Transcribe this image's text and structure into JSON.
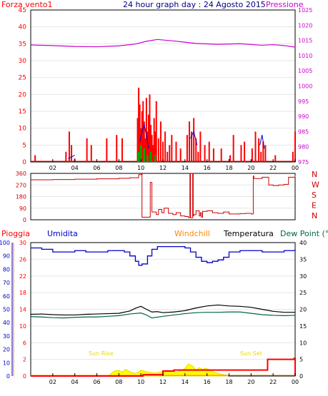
{
  "header": {
    "left_label": "Forza vento1",
    "title": "24 hour graph day : 24 Agosto 2015",
    "right_label": "Pressione"
  },
  "bottom_header": {
    "rain": "Pioggia",
    "humidity": "Umidita",
    "windchill": "Windchill",
    "temperature": "Temperatura",
    "dewpoint": "Dew Point (°C"
  },
  "annotations": {
    "sunrise": "Sun Rise",
    "sunset": "Sun Set"
  },
  "colors": {
    "wind": "#ff0000",
    "gust_blue": "#0000cc",
    "green": "#00aa00",
    "pressure": "#cc00cc",
    "direction": "#cc0000",
    "humidity": "#0000cc",
    "windchill": "#ff8800",
    "temperature": "#000000",
    "dewpoint": "#006644",
    "rain_fill": "#ffff00",
    "rain_total": "#ff0000",
    "title": "#000080"
  },
  "chart_data": [
    {
      "type": "line",
      "name": "wind-pressure",
      "x_ticks": [
        "02",
        "04",
        "06",
        "08",
        "10",
        "12",
        "14",
        "16",
        "18",
        "20",
        "22",
        "00"
      ],
      "y_left_ticks": [
        "0",
        "5",
        "10",
        "15",
        "20",
        "25",
        "30",
        "35",
        "40",
        "45"
      ],
      "y_right_ticks": [
        "975",
        "980",
        "985",
        "990",
        "995",
        "1000",
        "1005",
        "1010",
        "1015",
        "1020",
        "1025"
      ],
      "ylim_left": [
        0,
        45
      ],
      "ylim_right": [
        975,
        1025
      ],
      "series": [
        {
          "name": "Pressione",
          "axis": "right",
          "x": [
            0,
            2,
            4,
            6,
            8,
            9.5,
            10.5,
            11.5,
            13,
            15,
            17,
            19,
            21,
            22,
            23,
            24
          ],
          "y": [
            1013.5,
            1013.3,
            1013,
            1012.9,
            1013.2,
            1013.8,
            1014.7,
            1015.3,
            1014.8,
            1014,
            1013.7,
            1013.9,
            1013.4,
            1013.6,
            1013.3,
            1012.8
          ]
        }
      ],
      "wind_speed": {
        "x": [
          0.4,
          3.2,
          3.5,
          3.7,
          4.0,
          5.1,
          5.5,
          6.9,
          7.8,
          8.3,
          9.7,
          9.8,
          9.9,
          10.0,
          10.1,
          10.2,
          10.3,
          10.4,
          10.5,
          10.6,
          10.7,
          10.8,
          10.9,
          11.0,
          11.1,
          11.2,
          11.3,
          11.4,
          11.6,
          11.8,
          12.0,
          12.2,
          12.4,
          12.6,
          12.8,
          13.2,
          13.6,
          14.2,
          14.4,
          14.6,
          14.8,
          15.0,
          15.2,
          15.4,
          15.8,
          16.2,
          16.6,
          17.3,
          18.1,
          18.4,
          19.1,
          19.4,
          20.1,
          20.4,
          20.7,
          20.9,
          21.1,
          21.3,
          22.2,
          23.8,
          24.0
        ],
        "y": [
          2,
          3,
          9,
          5,
          1,
          7,
          5,
          7,
          8,
          7,
          13,
          22,
          17,
          10,
          15,
          18,
          12,
          7,
          19,
          9,
          14,
          20,
          11,
          8,
          5,
          13,
          9,
          18,
          7,
          12,
          6,
          9,
          3,
          5,
          8,
          6,
          4,
          8,
          12,
          9,
          13,
          7,
          3,
          9,
          5,
          6,
          4,
          4,
          2,
          8,
          5,
          6,
          4,
          9,
          7,
          3,
          6,
          5,
          2,
          3,
          9
        ]
      },
      "wind_gust_blue": {
        "x": [
          3.4,
          4.0,
          9.9,
          10.1,
          10.3,
          10.5,
          10.7,
          14.5,
          14.8,
          15.1,
          20.8,
          21.0,
          21.2
        ],
        "y": [
          1,
          2,
          6,
          9,
          11,
          8,
          4,
          7,
          9,
          5,
          5,
          8,
          4
        ]
      },
      "wind_green": {
        "x": [
          9.8,
          10.0,
          10.3,
          10.6,
          10.9,
          11.3
        ],
        "y": [
          3,
          5,
          4,
          2,
          3,
          2
        ]
      }
    },
    {
      "type": "line",
      "name": "wind-direction",
      "y_left_ticks": [
        "0",
        "90",
        "180",
        "270",
        "360"
      ],
      "y_right_ticks": [
        "N",
        "W",
        "S",
        "E",
        "N"
      ],
      "ylim": [
        0,
        360
      ],
      "series": [
        {
          "name": "direction",
          "x": [
            0,
            2,
            4,
            6,
            8,
            9,
            9.8,
            10.05,
            10.1,
            10.5,
            10.8,
            10.85,
            11.0,
            11.4,
            11.6,
            11.9,
            12.1,
            12.5,
            12.9,
            13.2,
            13.6,
            14.0,
            14.3,
            14.45,
            14.5,
            14.7,
            14.75,
            14.8,
            15.0,
            15.3,
            15.4,
            15.5,
            15.6,
            16.0,
            16.5,
            17.0,
            17.5,
            18.0,
            18.5,
            19.0,
            19.5,
            20.0,
            20.2,
            20.25,
            21.0,
            21.5,
            21.6,
            22.0,
            22.5,
            23.0,
            23.4,
            23.5,
            24.0
          ],
          "y": [
            310,
            312,
            315,
            318,
            322,
            326,
            350,
            356,
            20,
            20,
            22,
            290,
            60,
            40,
            80,
            55,
            90,
            50,
            40,
            55,
            30,
            25,
            18,
            360,
            15,
            360,
            30,
            40,
            70,
            30,
            55,
            20,
            65,
            70,
            55,
            50,
            60,
            45,
            45,
            48,
            50,
            45,
            340,
            320,
            330,
            330,
            270,
            265,
            270,
            275,
            330,
            330,
            345
          ]
        }
      ]
    },
    {
      "type": "line",
      "name": "temperature-humidity-rain",
      "y_far_left_ticks": [
        "0",
        "10",
        "20",
        "30",
        "40",
        "50",
        "60",
        "70",
        "80",
        "90",
        "100"
      ],
      "y_left_ticks": [
        "0",
        "2",
        "6",
        "10",
        "14",
        "18",
        "22",
        "26",
        "30"
      ],
      "y_right_ticks": [
        "0",
        "5",
        "10",
        "15",
        "20",
        "25",
        "30",
        "35",
        "40"
      ],
      "ylim_humidity": [
        0,
        100
      ],
      "ylim_temperature": [
        0,
        40
      ],
      "series": [
        {
          "name": "Umidita",
          "axis": "humidity",
          "x": [
            0,
            1,
            2,
            3,
            4,
            5,
            6,
            7,
            8,
            8.5,
            9,
            9.5,
            9.8,
            10.1,
            10.6,
            11,
            11.5,
            12,
            13,
            14,
            14.5,
            15,
            15.5,
            16,
            16.5,
            17,
            17.5,
            18,
            19,
            20,
            21,
            22,
            23,
            24
          ],
          "y": [
            96,
            95,
            93,
            93,
            94,
            93,
            93,
            94,
            94,
            93,
            90,
            86,
            83,
            84,
            90,
            95,
            97,
            97,
            97,
            96,
            93,
            89,
            86,
            85,
            86,
            87,
            89,
            93,
            94,
            94,
            93,
            93,
            94,
            95
          ]
        },
        {
          "name": "Temperatura",
          "axis": "temperature",
          "x": [
            0,
            1,
            2,
            3,
            4,
            5,
            6,
            7,
            8,
            9,
            9.5,
            10,
            10.5,
            11,
            11.5,
            12,
            13,
            14,
            15,
            16,
            17,
            18,
            19,
            20,
            21,
            22,
            23,
            24
          ],
          "y": [
            18.5,
            18.6,
            18.4,
            18.3,
            18.3,
            18.5,
            18.6,
            18.7,
            18.8,
            19.5,
            20.3,
            20.9,
            20.0,
            19.2,
            19.3,
            19.0,
            19.2,
            19.6,
            20.4,
            21.0,
            21.3,
            21.0,
            20.9,
            20.6,
            20.0,
            19.4,
            19.1,
            19.1
          ]
        },
        {
          "name": "Dew Point",
          "axis": "temperature",
          "x": [
            0,
            1,
            2,
            3,
            4,
            5,
            6,
            7,
            8,
            9,
            10,
            10.5,
            11,
            12,
            13,
            14,
            15,
            16,
            17,
            18,
            19,
            20,
            21,
            22,
            23,
            24
          ],
          "y": [
            17.8,
            17.7,
            17.5,
            17.4,
            17.6,
            17.7,
            17.7,
            17.9,
            18.1,
            18.6,
            18.9,
            18.3,
            17.4,
            17.9,
            18.3,
            18.7,
            19.0,
            19.1,
            19.1,
            19.2,
            19.2,
            18.8,
            18.4,
            18.2,
            18.1,
            18.2
          ]
        }
      ],
      "rain_total": {
        "x": [
          0,
          7.5,
          10.2,
          11.9,
          12.0,
          12.6,
          13.0,
          20.9,
          21.5,
          23.9,
          24.0
        ],
        "y": [
          0,
          0,
          0.4,
          0.4,
          1.5,
          1.5,
          1.8,
          1.8,
          5,
          5.3,
          0
        ]
      },
      "rain_rate": {
        "x": [
          7.2,
          7.6,
          8.0,
          8.3,
          8.6,
          9.0,
          9.4,
          9.7,
          10.0,
          10.3,
          10.6,
          11.0,
          11.3,
          11.6,
          12.0,
          12.4,
          12.8,
          13.2,
          13.6,
          14.0,
          14.3,
          14.6,
          14.8,
          15.0,
          15.3,
          15.6,
          15.9,
          16.2,
          16.6,
          17.0,
          17.5,
          17.9
        ],
        "y": [
          0.5,
          1.5,
          1.7,
          1.2,
          2.0,
          1.3,
          0.8,
          1.0,
          1.8,
          1.5,
          1.2,
          1.0,
          0.9,
          1.1,
          1.4,
          1.7,
          1.4,
          1.1,
          1.5,
          2.3,
          3.6,
          3.2,
          2.6,
          1.8,
          2.5,
          2.0,
          2.3,
          1.9,
          1.2,
          0.8,
          0.4,
          0.2
        ]
      }
    }
  ]
}
